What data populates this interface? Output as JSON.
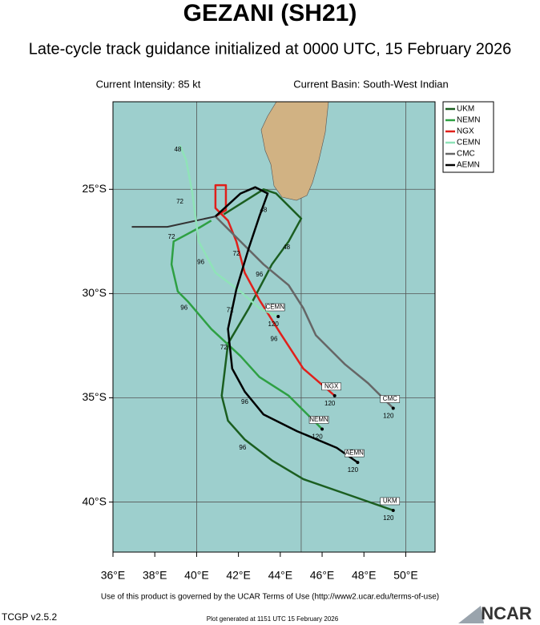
{
  "header": {
    "title": "GEZANI (SH21)",
    "subtitle": "Late-cycle track guidance initialized at 0000 UTC, 15 February 2026",
    "intensity": "Current Intensity: 85 kt",
    "basin": "Current Basin: South-West Indian"
  },
  "map": {
    "lonlim": [
      36,
      51.4
    ],
    "latlim": [
      -42.4,
      -20.8
    ],
    "lonticks": [
      {
        "value": 36,
        "label": "36°E"
      },
      {
        "value": 38,
        "label": "38°E"
      },
      {
        "value": 40,
        "label": "40°E"
      },
      {
        "value": 42,
        "label": "42°E"
      },
      {
        "value": 44,
        "label": "44°E"
      },
      {
        "value": 46,
        "label": "46°E"
      },
      {
        "value": 48,
        "label": "48°E"
      },
      {
        "value": 50,
        "label": "50°E"
      }
    ],
    "latticks": [
      {
        "value": -25,
        "label": "25°S"
      },
      {
        "value": -30,
        "label": "30°S"
      },
      {
        "value": -35,
        "label": "35°S"
      },
      {
        "value": -40,
        "label": "40°S"
      }
    ],
    "grid_lon": [
      40,
      45,
      50
    ],
    "history": {
      "color": "#333333",
      "points": [
        [
          36.9,
          -26.8
        ],
        [
          38.6,
          -26.8
        ],
        [
          40.9,
          -26.3
        ]
      ]
    },
    "tracks": [
      {
        "name": "UKM",
        "color": "#1b5e20",
        "end_label": "120",
        "points": [
          [
            41.3,
            -26.2
          ],
          [
            43.2,
            -25.0
          ],
          [
            43.8,
            -25.2
          ],
          [
            45.0,
            -26.4
          ],
          [
            44.4,
            -27.5
          ],
          [
            43.6,
            -28.6
          ],
          [
            42.5,
            -30.7
          ],
          [
            41.5,
            -32.4
          ],
          [
            41.2,
            -34.9
          ],
          [
            41.5,
            -36.1
          ],
          [
            42.3,
            -37.0
          ],
          [
            43.6,
            -38.0
          ],
          [
            45.1,
            -38.9
          ],
          [
            47.4,
            -39.7
          ],
          [
            49.4,
            -40.4
          ]
        ]
      },
      {
        "name": "NEMN",
        "color": "#2ea043",
        "end_label": "120",
        "points": [
          [
            40.7,
            -26.5
          ],
          [
            40.2,
            -26.8
          ],
          [
            38.9,
            -27.5
          ],
          [
            38.8,
            -28.6
          ],
          [
            39.1,
            -29.9
          ],
          [
            39.6,
            -30.4
          ],
          [
            40.7,
            -31.7
          ],
          [
            42.1,
            -33.0
          ],
          [
            43.0,
            -34.0
          ],
          [
            44.4,
            -34.9
          ],
          [
            46.0,
            -36.5
          ]
        ]
      },
      {
        "name": "NGX",
        "color": "#e0201b",
        "end_label": "120",
        "points": [
          [
            40.9,
            -26.3
          ],
          [
            41.4,
            -26.0
          ],
          [
            41.4,
            -24.8
          ],
          [
            40.9,
            -24.8
          ],
          [
            40.9,
            -25.9
          ],
          [
            41.5,
            -26.5
          ],
          [
            41.9,
            -27.5
          ],
          [
            42.3,
            -29.0
          ],
          [
            43.0,
            -30.3
          ],
          [
            44.0,
            -31.9
          ],
          [
            45.1,
            -33.6
          ],
          [
            46.6,
            -34.9
          ]
        ]
      },
      {
        "name": "CEMN",
        "color": "#8fe3b8",
        "end_label": "120",
        "points": [
          [
            39.2,
            -22.9
          ],
          [
            39.5,
            -23.6
          ],
          [
            39.8,
            -25.2
          ],
          [
            40.1,
            -27.5
          ],
          [
            40.9,
            -29.0
          ],
          [
            42.1,
            -29.9
          ],
          [
            43.0,
            -30.7
          ],
          [
            43.9,
            -31.1
          ]
        ]
      },
      {
        "name": "CMC",
        "color": "#666666",
        "end_label": "120",
        "points": [
          [
            40.9,
            -26.3
          ],
          [
            42.1,
            -27.5
          ],
          [
            43.2,
            -28.6
          ],
          [
            44.4,
            -29.6
          ],
          [
            45.1,
            -30.7
          ],
          [
            45.7,
            -32.0
          ],
          [
            47.1,
            -33.4
          ],
          [
            48.2,
            -34.3
          ],
          [
            49.4,
            -35.5
          ]
        ]
      },
      {
        "name": "AEMN",
        "color": "#000000",
        "end_label": "120",
        "points": [
          [
            40.9,
            -26.3
          ],
          [
            42.1,
            -25.2
          ],
          [
            42.8,
            -24.9
          ],
          [
            43.4,
            -25.2
          ],
          [
            43.0,
            -26.3
          ],
          [
            42.5,
            -27.8
          ],
          [
            41.9,
            -29.8
          ],
          [
            41.5,
            -31.7
          ],
          [
            41.7,
            -33.6
          ],
          [
            42.3,
            -34.7
          ],
          [
            43.2,
            -35.8
          ],
          [
            44.8,
            -36.6
          ],
          [
            46.7,
            -37.4
          ],
          [
            47.7,
            -38.1
          ]
        ]
      }
    ],
    "point_labels": [
      {
        "text": "48",
        "lon": 39.1,
        "lat": -23.1
      },
      {
        "text": "72",
        "lon": 39.2,
        "lat": -25.6
      },
      {
        "text": "72",
        "lon": 38.8,
        "lat": -27.3
      },
      {
        "text": "72",
        "lon": 41.9,
        "lat": -28.1
      },
      {
        "text": "72",
        "lon": 41.6,
        "lat": -30.8
      },
      {
        "text": "72",
        "lon": 41.3,
        "lat": -32.6
      },
      {
        "text": "48",
        "lon": 43.2,
        "lat": -26.0
      },
      {
        "text": "48",
        "lon": 44.3,
        "lat": -27.8
      },
      {
        "text": "96",
        "lon": 42.2,
        "lat": -37.4
      },
      {
        "text": "96",
        "lon": 42.3,
        "lat": -35.2
      },
      {
        "text": "96",
        "lon": 43.7,
        "lat": -32.2
      },
      {
        "text": "96",
        "lon": 39.4,
        "lat": -30.7
      },
      {
        "text": "96",
        "lon": 40.2,
        "lat": -28.5
      },
      {
        "text": "96",
        "lon": 43.0,
        "lat": -29.1
      }
    ]
  },
  "footer": {
    "terms": "Use of this product is governed by the UCAR Terms of Use (http://www2.ucar.edu/terms-of-use)",
    "version": "TCGP v2.5.2",
    "generated": "Plot generated at 1151 UTC  15 February 2026",
    "logo": "NCAR"
  }
}
